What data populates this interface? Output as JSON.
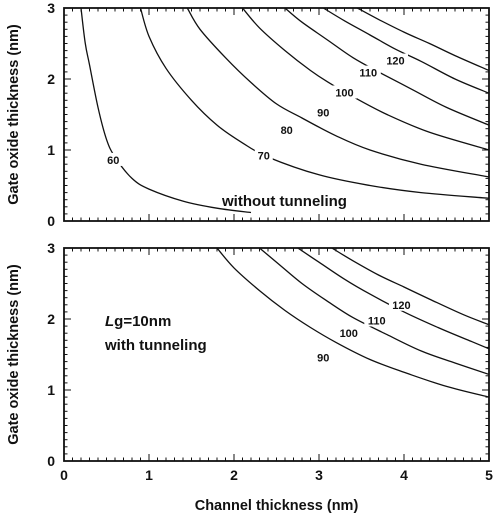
{
  "chart_data": [
    {
      "type": "line",
      "panel": "top",
      "xlabel": "",
      "ylabel": "Gate oxide thickness (nm)",
      "xlim": [
        0,
        5
      ],
      "ylim": [
        0,
        3
      ],
      "xticks": [
        0,
        1,
        2,
        3,
        4,
        5
      ],
      "yticks": [
        0,
        1,
        2,
        3
      ],
      "show_x_tick_labels": false,
      "grid": false,
      "annotations": [
        "without tunneling"
      ],
      "series": [
        {
          "name": "60",
          "points": [
            [
              0.2,
              3.0
            ],
            [
              0.25,
              2.5
            ],
            [
              0.3,
              2.2
            ],
            [
              0.4,
              1.6
            ],
            [
              0.5,
              1.15
            ],
            [
              0.6,
              0.9
            ],
            [
              0.8,
              0.6
            ],
            [
              1.0,
              0.45
            ],
            [
              1.4,
              0.28
            ],
            [
              1.8,
              0.18
            ],
            [
              2.2,
              0.12
            ]
          ],
          "label_at": [
            0.58,
            0.86
          ]
        },
        {
          "name": "70",
          "points": [
            [
              0.9,
              3.0
            ],
            [
              1.0,
              2.6
            ],
            [
              1.2,
              2.15
            ],
            [
              1.5,
              1.7
            ],
            [
              1.8,
              1.35
            ],
            [
              2.1,
              1.1
            ],
            [
              2.4,
              0.9
            ],
            [
              3.0,
              0.65
            ],
            [
              3.6,
              0.5
            ],
            [
              4.2,
              0.4
            ],
            [
              5.0,
              0.32
            ]
          ],
          "label_at": [
            2.35,
            0.92
          ]
        },
        {
          "name": "80",
          "points": [
            [
              1.45,
              3.0
            ],
            [
              1.6,
              2.7
            ],
            [
              1.9,
              2.3
            ],
            [
              2.2,
              1.95
            ],
            [
              2.5,
              1.65
            ],
            [
              2.8,
              1.45
            ],
            [
              3.2,
              1.2
            ],
            [
              3.6,
              1.0
            ],
            [
              4.2,
              0.8
            ],
            [
              5.0,
              0.62
            ]
          ],
          "label_at": [
            2.62,
            1.28
          ]
        },
        {
          "name": "90",
          "points": [
            [
              2.1,
              3.0
            ],
            [
              2.3,
              2.72
            ],
            [
              2.6,
              2.4
            ],
            [
              2.9,
              2.12
            ],
            [
              3.1,
              1.96
            ],
            [
              3.4,
              1.75
            ],
            [
              3.8,
              1.5
            ],
            [
              4.3,
              1.25
            ],
            [
              5.0,
              1.0
            ]
          ],
          "label_at": [
            3.05,
            1.53
          ]
        },
        {
          "name": "100",
          "points": [
            [
              2.6,
              3.0
            ],
            [
              2.8,
              2.8
            ],
            [
              3.1,
              2.55
            ],
            [
              3.4,
              2.3
            ],
            [
              3.7,
              2.1
            ],
            [
              4.1,
              1.85
            ],
            [
              4.5,
              1.6
            ],
            [
              5.0,
              1.35
            ]
          ],
          "label_at": [
            3.3,
            1.81
          ]
        },
        {
          "name": "110",
          "points": [
            [
              3.05,
              3.0
            ],
            [
              3.3,
              2.82
            ],
            [
              3.6,
              2.62
            ],
            [
              3.9,
              2.42
            ],
            [
              4.2,
              2.25
            ],
            [
              4.6,
              2.0
            ],
            [
              5.0,
              1.8
            ]
          ],
          "label_at": [
            3.58,
            2.09
          ]
        },
        {
          "name": "120",
          "points": [
            [
              3.45,
              3.0
            ],
            [
              3.7,
              2.84
            ],
            [
              4.0,
              2.66
            ],
            [
              4.3,
              2.5
            ],
            [
              4.6,
              2.33
            ],
            [
              5.0,
              2.12
            ]
          ],
          "label_at": [
            3.9,
            2.26
          ]
        }
      ]
    },
    {
      "type": "line",
      "panel": "bottom",
      "xlabel": "Channel thickness (nm)",
      "ylabel": "Gate oxide thickness (nm)",
      "xlim": [
        0,
        5
      ],
      "ylim": [
        0,
        3
      ],
      "xticks": [
        0,
        1,
        2,
        3,
        4,
        5
      ],
      "yticks": [
        0,
        1,
        2,
        3
      ],
      "show_x_tick_labels": true,
      "grid": false,
      "annotations": [
        "Lg=10nm",
        "with tunneling"
      ],
      "series": [
        {
          "name": "90",
          "points": [
            [
              1.8,
              3.0
            ],
            [
              2.0,
              2.72
            ],
            [
              2.3,
              2.4
            ],
            [
              2.6,
              2.12
            ],
            [
              2.9,
              1.88
            ],
            [
              3.2,
              1.67
            ],
            [
              3.6,
              1.43
            ],
            [
              4.0,
              1.25
            ],
            [
              4.5,
              1.05
            ],
            [
              5.0,
              0.9
            ]
          ],
          "label_at": [
            3.05,
            1.46
          ]
        },
        {
          "name": "100",
          "points": [
            [
              2.3,
              3.0
            ],
            [
              2.5,
              2.8
            ],
            [
              2.8,
              2.5
            ],
            [
              3.1,
              2.25
            ],
            [
              3.4,
              2.02
            ],
            [
              3.8,
              1.78
            ],
            [
              4.2,
              1.55
            ],
            [
              4.6,
              1.38
            ],
            [
              5.0,
              1.22
            ]
          ],
          "label_at": [
            3.35,
            1.8
          ]
        },
        {
          "name": "110",
          "points": [
            [
              2.75,
              3.0
            ],
            [
              3.0,
              2.8
            ],
            [
              3.3,
              2.56
            ],
            [
              3.6,
              2.35
            ],
            [
              4.0,
              2.1
            ],
            [
              4.4,
              1.88
            ],
            [
              4.8,
              1.68
            ],
            [
              5.0,
              1.58
            ]
          ],
          "label_at": [
            3.68,
            1.98
          ]
        },
        {
          "name": "120",
          "points": [
            [
              3.15,
              3.0
            ],
            [
              3.4,
              2.82
            ],
            [
              3.7,
              2.62
            ],
            [
              4.0,
              2.45
            ],
            [
              4.3,
              2.28
            ],
            [
              4.7,
              2.06
            ],
            [
              5.0,
              1.92
            ]
          ],
          "label_at": [
            3.97,
            2.2
          ]
        }
      ]
    }
  ]
}
